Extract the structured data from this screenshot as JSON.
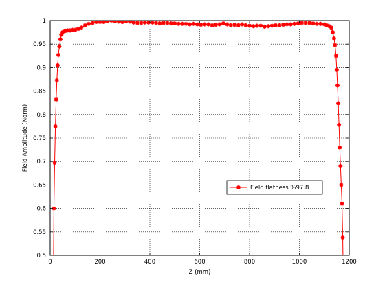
{
  "chart_data": {
    "type": "line",
    "xlabel": "Z (mm)",
    "ylabel": "Field Amplitude (Norm)",
    "xlim": [
      0,
      1200
    ],
    "ylim": [
      0.5,
      1.0
    ],
    "xticks": [
      0,
      200,
      400,
      600,
      800,
      1000,
      1200
    ],
    "yticks": [
      0.5,
      0.55,
      0.6,
      0.65,
      0.7,
      0.75,
      0.8,
      0.85,
      0.9,
      0.95,
      1
    ],
    "xtick_labels": [
      "0",
      "200",
      "400",
      "600",
      "800",
      "1000",
      "1200"
    ],
    "ytick_labels": [
      "0.5",
      "0.55",
      "0.6",
      "0.65",
      "0.7",
      "0.75",
      "0.8",
      "0.85",
      "0.9",
      "0.95",
      "1"
    ],
    "grid": true,
    "legend_position": "right, middle-low",
    "series": [
      {
        "name": "Field flatness %97.8",
        "color": "#ff0000",
        "marker": "star",
        "x": [
          15,
          18,
          21,
          24,
          27,
          30,
          33,
          37,
          41,
          45,
          50,
          56,
          62,
          70,
          80,
          90,
          100,
          112,
          125,
          140,
          155,
          170,
          185,
          200,
          215,
          230,
          245,
          260,
          275,
          290,
          305,
          320,
          335,
          350,
          365,
          380,
          395,
          410,
          425,
          440,
          455,
          470,
          485,
          500,
          515,
          530,
          545,
          560,
          575,
          590,
          605,
          620,
          635,
          650,
          665,
          680,
          695,
          710,
          725,
          740,
          755,
          770,
          785,
          800,
          815,
          830,
          845,
          860,
          875,
          890,
          905,
          920,
          935,
          950,
          965,
          980,
          995,
          1010,
          1025,
          1040,
          1055,
          1070,
          1085,
          1100,
          1110,
          1120,
          1128,
          1134,
          1139,
          1143,
          1147,
          1150,
          1153,
          1156,
          1159,
          1162,
          1165,
          1168,
          1171,
          1174
        ],
        "y": [
          0.6,
          0.697,
          0.775,
          0.832,
          0.873,
          0.905,
          0.927,
          0.945,
          0.96,
          0.97,
          0.975,
          0.978,
          0.978,
          0.979,
          0.979,
          0.98,
          0.98,
          0.982,
          0.985,
          0.99,
          0.993,
          0.995,
          0.997,
          0.997,
          0.997,
          0.999,
          1.0,
          0.999,
          0.998,
          0.997,
          0.999,
          0.998,
          0.996,
          0.995,
          0.995,
          0.996,
          0.996,
          0.996,
          0.995,
          0.994,
          0.995,
          0.995,
          0.994,
          0.994,
          0.993,
          0.993,
          0.993,
          0.992,
          0.993,
          0.992,
          0.991,
          0.992,
          0.992,
          0.99,
          0.991,
          0.992,
          0.994,
          0.992,
          0.99,
          0.991,
          0.99,
          0.992,
          0.99,
          0.989,
          0.988,
          0.989,
          0.989,
          0.987,
          0.988,
          0.989,
          0.99,
          0.99,
          0.991,
          0.992,
          0.992,
          0.993,
          0.994,
          0.995,
          0.995,
          0.995,
          0.994,
          0.993,
          0.993,
          0.992,
          0.99,
          0.988,
          0.985,
          0.975,
          0.962,
          0.948,
          0.925,
          0.895,
          0.862,
          0.824,
          0.778,
          0.73,
          0.69,
          0.65,
          0.61,
          0.538
        ]
      }
    ]
  }
}
